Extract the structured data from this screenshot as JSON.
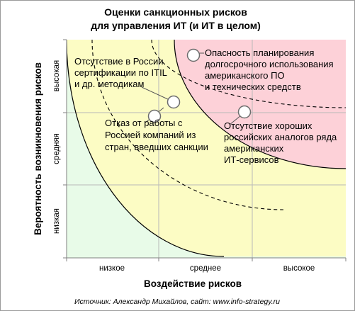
{
  "chart": {
    "title_line1": "Оценки санкционных рисков",
    "title_line2": "для управления ИТ (и ИТ в целом)",
    "xlabel": "Воздействие рисков",
    "ylabel": "Вероятность возникновения рисков",
    "x_ticks": [
      "низкое",
      "среднее",
      "высокое"
    ],
    "y_ticks": [
      "низкая",
      "средняя",
      "высокая"
    ],
    "source": "Источник: Александр Михайлов, сайт: www.info-strategy.ru"
  },
  "zones": {
    "low_color": "#e8fbe8",
    "medium_color": "#fcfcc4",
    "high_color": "#fdd1d8"
  },
  "risks": [
    {
      "id": "cert",
      "lines": [
        "Отсутствие в России",
        "сертификации по ITIL",
        "и др. методикам"
      ]
    },
    {
      "id": "exit",
      "lines": [
        "Отказ от работы с",
        "Россией компаний из",
        "стран, введших санкции"
      ]
    },
    {
      "id": "planning",
      "lines": [
        "Опасность планирования",
        "долгосрочного использования",
        "американского ПО",
        "и технических средств"
      ]
    },
    {
      "id": "analogs",
      "lines": [
        "Отсутствие хороших",
        "российских аналогов ряда",
        "американских",
        "ИТ-сервисов"
      ]
    }
  ]
}
